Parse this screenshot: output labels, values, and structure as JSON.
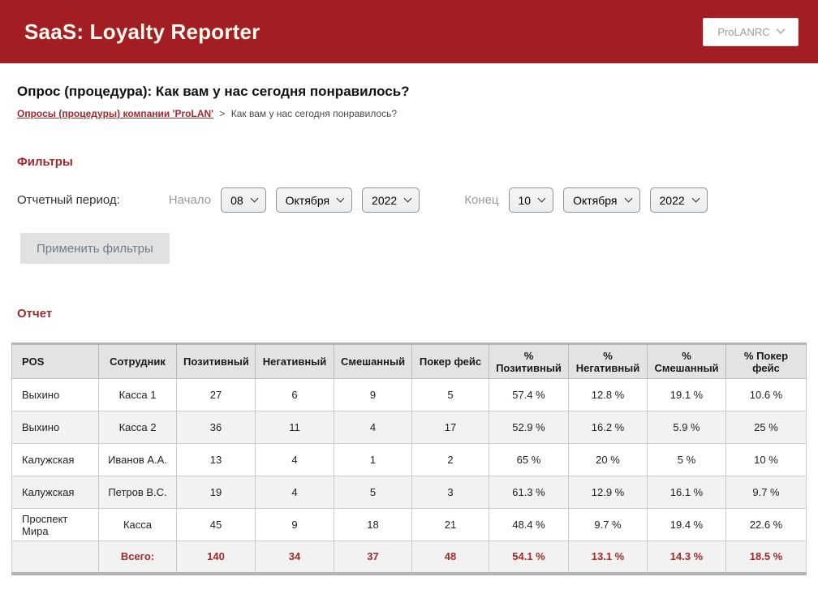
{
  "header": {
    "app_title": "SaaS: Loyalty Reporter",
    "company_select_value": "ProLANRC"
  },
  "page": {
    "title": "Опрос (процедура): Как вам у нас сегодня понравилось?",
    "breadcrumb": {
      "link": "Опросы (процедуры) компании 'ProLAN'",
      "separator": ">",
      "current": "Как вам у нас сегодня понравилось?"
    }
  },
  "filters": {
    "heading": "Фильтры",
    "period_label": "Отчетный период:",
    "start_label": "Начало",
    "end_label": "Конец",
    "start": {
      "day": "08",
      "month": "Октября",
      "year": "2022"
    },
    "end": {
      "day": "10",
      "month": "Октября",
      "year": "2022"
    },
    "apply_button": "Применить фильтры"
  },
  "report": {
    "heading": "Отчет",
    "table": {
      "columns": [
        "POS",
        "Сотрудник",
        "Позитивный",
        "Негативный",
        "Смешанный",
        "Покер фейс",
        "% Позитивный",
        "% Негативный",
        "% Смешанный",
        "% Покер фейс"
      ],
      "rows": [
        [
          "Выхино",
          "Касса 1",
          "27",
          "6",
          "9",
          "5",
          "57.4 %",
          "12.8 %",
          "19.1 %",
          "10.6 %"
        ],
        [
          "Выхино",
          "Касса 2",
          "36",
          "11",
          "4",
          "17",
          "52.9 %",
          "16.2 %",
          "5.9 %",
          "25 %"
        ],
        [
          "Калужская",
          "Иванов А.А.",
          "13",
          "4",
          "1",
          "2",
          "65 %",
          "20 %",
          "5 %",
          "10 %"
        ],
        [
          "Калужская",
          "Петров В.С.",
          "19",
          "4",
          "5",
          "3",
          "61.3 %",
          "12.9 %",
          "16.1 %",
          "9.7 %"
        ],
        [
          "Проспект Мира",
          "Касса",
          "45",
          "9",
          "18",
          "21",
          "48.4 %",
          "9.7 %",
          "19.4 %",
          "22.6 %"
        ]
      ],
      "total_row": [
        "",
        "Всего:",
        "140",
        "34",
        "37",
        "48",
        "54.1 %",
        "13.1 %",
        "14.3 %",
        "18.5 %"
      ]
    }
  },
  "colors": {
    "brand_red": "#a31e23",
    "heading_red": "#9f2a2d",
    "total_text_red": "#a12a2a",
    "table_header_bg": "#e3e3e3",
    "zebra_row_bg": "#f2f2f2"
  }
}
